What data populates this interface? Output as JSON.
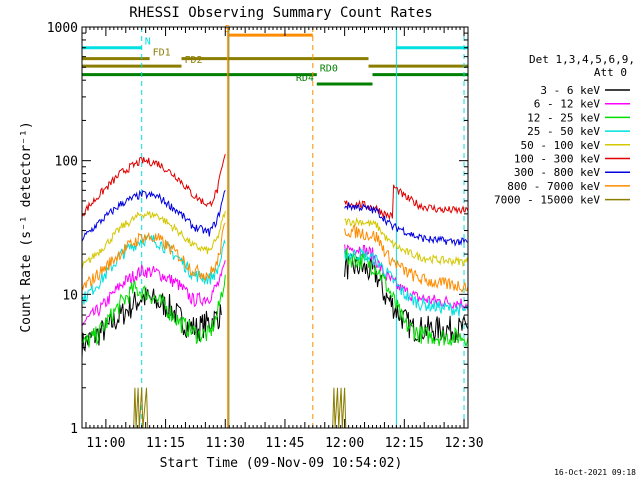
{
  "chart_data": {
    "type": "line",
    "title": "RHESSI Observing Summary Count Rates",
    "xlabel": "Start Time (09-Nov-09 10:54:02)",
    "ylabel": "Count Rate (s⁻¹ detector⁻¹)",
    "y_scale": "log",
    "ylim": [
      1,
      1000
    ],
    "xlim_minutes_after_1054": [
      0,
      97
    ],
    "x_tick_labels": [
      "11:00",
      "11:15",
      "11:30",
      "11:45",
      "12:00",
      "12:15",
      "12:30"
    ],
    "x_tick_minutes": [
      6,
      21,
      36,
      51,
      66,
      81,
      96
    ],
    "y_tick_labels": [
      "1",
      "10",
      "100",
      "1000"
    ],
    "y_tick_values": [
      1,
      10,
      100,
      1000
    ],
    "timestamp": "16-Oct-2021 09:18",
    "legend": {
      "header_line1": "Det 1,3,4,5,6,9,",
      "header_line2": "Att 0",
      "entries": [
        {
          "label": "3 - 6 keV",
          "color": "#000000"
        },
        {
          "label": "6 - 12 keV",
          "color": "#ff00ff"
        },
        {
          "label": "12 - 25 keV",
          "color": "#00dd00"
        },
        {
          "label": "25 - 50 keV",
          "color": "#00e0e0"
        },
        {
          "label": "50 - 100 keV",
          "color": "#d4c800"
        },
        {
          "label": "100 - 300 keV",
          "color": "#e00000"
        },
        {
          "label": "300 - 800 keV",
          "color": "#0000e0"
        },
        {
          "label": "800 - 7000 keV",
          "color": "#ff8c00"
        },
        {
          "label": "7000 - 15000 keV",
          "color": "#8b7d00"
        }
      ]
    },
    "series": [
      {
        "name": "3 - 6 keV",
        "color": "#000000",
        "noise": 0.1,
        "segments": [
          [
            [
              0,
              4.2
            ],
            [
              6,
              5.5
            ],
            [
              12,
              8
            ],
            [
              15,
              9.5
            ],
            [
              18,
              9
            ],
            [
              22,
              8
            ],
            [
              26,
              6
            ],
            [
              29,
              5.5
            ],
            [
              31,
              6
            ],
            [
              33,
              6.5
            ],
            [
              35,
              7
            ]
          ],
          [
            [
              66,
              16
            ],
            [
              70,
              16
            ],
            [
              74,
              14
            ],
            [
              76,
              10
            ],
            [
              80,
              7
            ],
            [
              83,
              5.5
            ],
            [
              86,
              5.5
            ],
            [
              90,
              5.5
            ],
            [
              97,
              5.5
            ]
          ]
        ]
      },
      {
        "name": "6 - 12 keV",
        "color": "#ff00ff",
        "noise": 0.05,
        "segments": [
          [
            [
              0,
              6
            ],
            [
              5,
              8
            ],
            [
              10,
              12
            ],
            [
              15,
              15
            ],
            [
              19,
              14.5
            ],
            [
              24,
              12
            ],
            [
              28,
              9
            ],
            [
              32,
              9.5
            ],
            [
              35,
              13
            ],
            [
              36,
              18
            ]
          ],
          [
            [
              66,
              22
            ],
            [
              70,
              22
            ],
            [
              73,
              20
            ],
            [
              76,
              14
            ],
            [
              80,
              11
            ],
            [
              84,
              9.5
            ],
            [
              88,
              9
            ],
            [
              97,
              8.5
            ]
          ]
        ]
      },
      {
        "name": "12 - 25 keV",
        "color": "#00dd00",
        "noise": 0.07,
        "segments": [
          [
            [
              0,
              4.2
            ],
            [
              4,
              5
            ],
            [
              9,
              8
            ],
            [
              13,
              11
            ],
            [
              17,
              10
            ],
            [
              21,
              8
            ],
            [
              25,
              6
            ],
            [
              29,
              5
            ],
            [
              32,
              5
            ],
            [
              34,
              7
            ],
            [
              36,
              14
            ]
          ],
          [
            [
              66,
              19
            ],
            [
              70,
              18
            ],
            [
              74,
              16
            ],
            [
              77,
              11
            ],
            [
              81,
              6
            ],
            [
              85,
              5
            ],
            [
              90,
              4.8
            ],
            [
              97,
              4.8
            ]
          ]
        ]
      },
      {
        "name": "25 - 50 keV",
        "color": "#00e0e0",
        "noise": 0.05,
        "segments": [
          [
            [
              0,
              9
            ],
            [
              5,
              13
            ],
            [
              10,
              20
            ],
            [
              15,
              26
            ],
            [
              19,
              25
            ],
            [
              24,
              19
            ],
            [
              28,
              14
            ],
            [
              32,
              13
            ],
            [
              34,
              15
            ],
            [
              36,
              24
            ]
          ],
          [
            [
              66,
              20
            ],
            [
              70,
              20
            ],
            [
              74,
              18
            ],
            [
              77,
              14
            ],
            [
              81,
              10
            ],
            [
              85,
              8.5
            ],
            [
              90,
              8
            ],
            [
              97,
              7.5
            ]
          ]
        ]
      },
      {
        "name": "50 - 100 keV",
        "color": "#d4c800",
        "noise": 0.03,
        "segments": [
          [
            [
              0,
              16
            ],
            [
              5,
              22
            ],
            [
              10,
              32
            ],
            [
              15,
              40
            ],
            [
              19,
              39
            ],
            [
              24,
              30
            ],
            [
              28,
              23
            ],
            [
              32,
              21
            ],
            [
              34,
              26
            ],
            [
              36,
              42
            ]
          ],
          [
            [
              66,
              35
            ],
            [
              70,
              35
            ],
            [
              74,
              33
            ],
            [
              77,
              25
            ],
            [
              81,
              21
            ],
            [
              85,
              19
            ],
            [
              90,
              18
            ],
            [
              97,
              17.5
            ]
          ]
        ]
      },
      {
        "name": "100 - 300 keV",
        "color": "#e00000",
        "noise": 0.03,
        "segments": [
          [
            [
              0,
              40
            ],
            [
              5,
              58
            ],
            [
              10,
              82
            ],
            [
              15,
              100
            ],
            [
              19,
              96
            ],
            [
              24,
              75
            ],
            [
              28,
              55
            ],
            [
              32,
              46
            ],
            [
              34,
              60
            ],
            [
              36,
              112
            ]
          ],
          [
            [
              66,
              48
            ],
            [
              70,
              47
            ],
            [
              74,
              44
            ],
            [
              76,
              40
            ],
            [
              78,
              38
            ],
            [
              78.3,
              64
            ],
            [
              81,
              54
            ],
            [
              85,
              46
            ],
            [
              90,
              43
            ],
            [
              97,
              42
            ]
          ]
        ]
      },
      {
        "name": "300 - 800 keV",
        "color": "#0000e0",
        "noise": 0.03,
        "segments": [
          [
            [
              0,
              26
            ],
            [
              5,
              36
            ],
            [
              10,
              48
            ],
            [
              15,
              56
            ],
            [
              19,
              54
            ],
            [
              24,
              42
            ],
            [
              28,
              32
            ],
            [
              32,
              29
            ],
            [
              34,
              36
            ],
            [
              36,
              60
            ]
          ],
          [
            [
              66,
              46
            ],
            [
              70,
              45
            ],
            [
              74,
              42
            ],
            [
              76,
              37
            ],
            [
              78,
              32
            ],
            [
              80,
              31
            ],
            [
              84,
              27
            ],
            [
              88,
              25.5
            ],
            [
              97,
              24.5
            ]
          ]
        ]
      },
      {
        "name": "800 - 7000 keV",
        "color": "#ff8c00",
        "noise": 0.05,
        "segments": [
          [
            [
              0,
              11
            ],
            [
              5,
              15
            ],
            [
              10,
              21
            ],
            [
              15,
              27
            ],
            [
              19,
              26
            ],
            [
              24,
              20
            ],
            [
              28,
              15
            ],
            [
              32,
              14
            ],
            [
              34,
              17
            ],
            [
              36,
              34
            ]
          ],
          [
            [
              66,
              30
            ],
            [
              70,
              29
            ],
            [
              74,
              27
            ],
            [
              77,
              19
            ],
            [
              81,
              15
            ],
            [
              85,
              13
            ],
            [
              90,
              12
            ],
            [
              97,
              11.5
            ]
          ]
        ]
      },
      {
        "name": "7000 - 15000 keV",
        "color": "#8b7d00",
        "noise": 0.0,
        "segments": [
          [
            [
              13,
              1
            ],
            [
              13.3,
              2
            ],
            [
              13.6,
              1
            ],
            [
              14.1,
              2
            ],
            [
              14.4,
              1
            ],
            [
              15,
              2
            ],
            [
              15.3,
              1
            ],
            [
              16.2,
              2
            ],
            [
              16.5,
              1
            ]
          ],
          [
            [
              63,
              1
            ],
            [
              63.3,
              2
            ],
            [
              63.6,
              1
            ],
            [
              64.2,
              2
            ],
            [
              64.5,
              1
            ],
            [
              65.1,
              2
            ],
            [
              65.4,
              1
            ],
            [
              66,
              2
            ],
            [
              66.3,
              1
            ]
          ]
        ]
      }
    ],
    "vertical_markers": [
      {
        "minute": 15,
        "color": "#00e0e0",
        "style": "dashed"
      },
      {
        "minute": 36.6,
        "color": "#ff8c00",
        "style": "solid"
      },
      {
        "minute": 36.9,
        "color": "#8b7d00",
        "style": "solid"
      },
      {
        "minute": 58,
        "color": "#ff8c00",
        "style": "dashed"
      },
      {
        "minute": 79,
        "color": "#00e0e0",
        "style": "solid"
      },
      {
        "minute": 96,
        "color": "#00e0e0",
        "style": "dashed"
      }
    ],
    "state_bars": [
      {
        "label": "N",
        "color": "#00e0e0",
        "y_value": 700,
        "segments": [
          [
            0,
            15
          ],
          [
            79,
            97
          ]
        ],
        "label_minute": 15
      },
      {
        "label": "S",
        "color": "#ff8c00",
        "y_value": 870,
        "segments": [
          [
            37,
            58
          ]
        ],
        "label_minute": 35
      },
      {
        "label": "FD1",
        "color": "#8b7d00",
        "y_value": 580,
        "segments": [
          [
            0,
            17
          ],
          [
            25,
            72
          ]
        ],
        "label_minute": 17
      },
      {
        "label": "FD2",
        "color": "#8b7d00",
        "y_value": 510,
        "segments": [
          [
            0,
            25
          ],
          [
            72,
            97
          ]
        ],
        "label_minute": 25
      },
      {
        "label": "RD0",
        "color": "#008000",
        "y_value": 440,
        "segments": [
          [
            0,
            58
          ],
          [
            58,
            59
          ],
          [
            73,
            97
          ]
        ],
        "label_minute": 59
      },
      {
        "label": "RD4",
        "color": "#008000",
        "y_value": 375,
        "segments": [
          [
            59,
            73
          ]
        ],
        "label_minute": 53
      }
    ]
  }
}
